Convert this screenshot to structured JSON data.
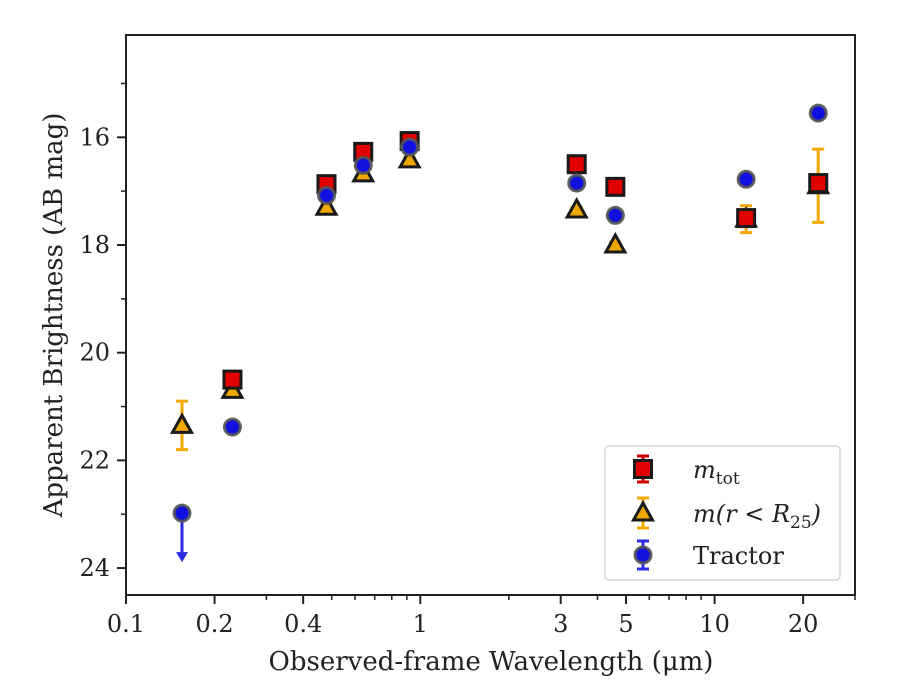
{
  "chart_data": {
    "type": "scatter",
    "xlabel": "Observed-frame Wavelength (μm)",
    "ylabel": "Apparent Brightness (AB mag)",
    "xscale": "log",
    "xlim": [
      0.1,
      30
    ],
    "ylim": [
      24.5,
      14.1
    ],
    "y_inverted": true,
    "x_ticks": [
      {
        "value": 0.1,
        "label": "0.1"
      },
      {
        "value": 0.2,
        "label": "0.2"
      },
      {
        "value": 0.4,
        "label": "0.4"
      },
      {
        "value": 1,
        "label": "1"
      },
      {
        "value": 3,
        "label": "3"
      },
      {
        "value": 5,
        "label": "5"
      },
      {
        "value": 10,
        "label": "10"
      },
      {
        "value": 20,
        "label": "20"
      }
    ],
    "y_ticks": [
      16,
      18,
      20,
      22,
      24
    ],
    "legend_position": "lower-right",
    "series": [
      {
        "name": "m_tot",
        "label_main": "m",
        "label_sub": "tot",
        "marker": "square",
        "color": "#e00000",
        "edge_color": "#1a1a1a",
        "errorbar_color": "#cc0000",
        "points": [
          {
            "x": 0.23,
            "y": 20.5,
            "err": 0.07
          },
          {
            "x": 0.48,
            "y": 16.87,
            "err": 0.05
          },
          {
            "x": 0.64,
            "y": 16.27,
            "err": 0.05
          },
          {
            "x": 0.92,
            "y": 16.07,
            "err": 0.05
          },
          {
            "x": 3.4,
            "y": 16.5,
            "err": 0.05
          },
          {
            "x": 4.6,
            "y": 16.92,
            "err": 0.05
          },
          {
            "x": 12.8,
            "y": 17.5,
            "err": 0.08
          },
          {
            "x": 22.5,
            "y": 16.85,
            "err": 0.1
          }
        ]
      },
      {
        "name": "m(r < R25)",
        "label_main": "m(r < R",
        "label_sub": "25",
        "label_end": ")",
        "marker": "triangle",
        "color": "#f0a800",
        "edge_color": "#1a1a1a",
        "errorbar_color": "#f5a800",
        "points": [
          {
            "x": 0.155,
            "y": 21.35,
            "err": 0.45
          },
          {
            "x": 0.23,
            "y": 20.7,
            "err": 0.05
          },
          {
            "x": 0.48,
            "y": 17.3,
            "err": 0.05
          },
          {
            "x": 0.64,
            "y": 16.68,
            "err": 0.05
          },
          {
            "x": 0.92,
            "y": 16.42,
            "err": 0.05
          },
          {
            "x": 3.4,
            "y": 17.35,
            "err": 0.05
          },
          {
            "x": 4.6,
            "y": 18.0,
            "err": 0.05
          },
          {
            "x": 12.8,
            "y": 17.52,
            "err": 0.25
          },
          {
            "x": 22.5,
            "y": 16.9,
            "err": 0.68
          }
        ]
      },
      {
        "name": "Tractor",
        "label_main": "Tractor",
        "marker": "circle",
        "color": "#1010e0",
        "edge_color": "#555555",
        "errorbar_color": "#2a2adf",
        "points": [
          {
            "x": 0.155,
            "y": 22.98,
            "upper_limit": true
          },
          {
            "x": 0.23,
            "y": 21.38,
            "err": 0.03
          },
          {
            "x": 0.48,
            "y": 17.08,
            "err": 0.03
          },
          {
            "x": 0.64,
            "y": 16.52,
            "err": 0.03
          },
          {
            "x": 0.92,
            "y": 16.18,
            "err": 0.03
          },
          {
            "x": 3.4,
            "y": 16.85,
            "err": 0.03
          },
          {
            "x": 4.6,
            "y": 17.45,
            "err": 0.03
          },
          {
            "x": 12.8,
            "y": 16.78,
            "err": 0.03
          },
          {
            "x": 22.5,
            "y": 15.55,
            "err": 0.03
          }
        ]
      }
    ]
  }
}
